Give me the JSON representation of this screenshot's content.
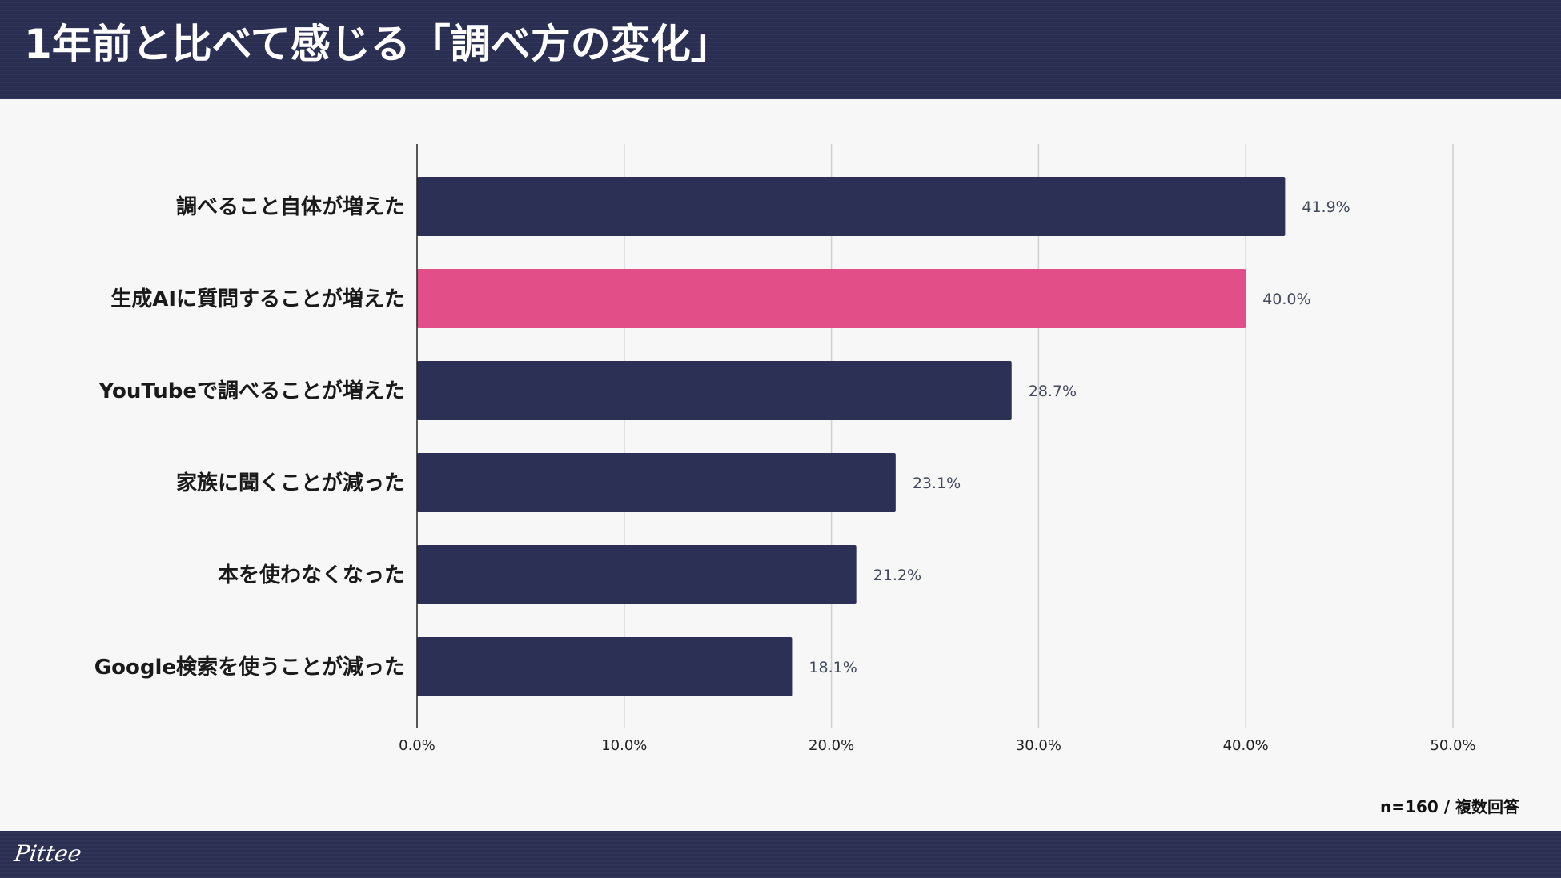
{
  "page": {
    "title": "1年前と比べて感じる「調べ方の変化」",
    "note": "n=160 / 複数回答",
    "logo_text": "Pittee"
  },
  "colors": {
    "header_bg": "#2b3054",
    "bar_default": "#2b3054",
    "bar_highlight": "#e24e88",
    "highlight_label": "#d9457f",
    "grid": "#cfcfd4"
  },
  "chart_data": {
    "type": "bar",
    "orientation": "horizontal",
    "title": "1年前と比べて感じる「調べ方の変化」",
    "categories": [
      "調べること自体が増えた",
      "生成AIに質問することが増えた",
      "YouTubeで調べることが増えた",
      "家族に聞くことが減った",
      "本を使わなくなった",
      "Google検索を使うことが減った"
    ],
    "values": [
      41.9,
      40.0,
      28.7,
      23.1,
      21.2,
      18.1
    ],
    "value_labels": [
      "41.9%",
      "40.0%",
      "28.7%",
      "23.1%",
      "21.2%",
      "18.1%"
    ],
    "highlight_index": 1,
    "xlim": [
      0,
      50
    ],
    "xticks": [
      0,
      10,
      20,
      30,
      40,
      50
    ],
    "xtick_labels": [
      "0.0%",
      "10.0%",
      "20.0%",
      "30.0%",
      "40.0%",
      "50.0%"
    ],
    "xlabel": "",
    "ylabel": "",
    "grid": true,
    "legend": "none"
  }
}
